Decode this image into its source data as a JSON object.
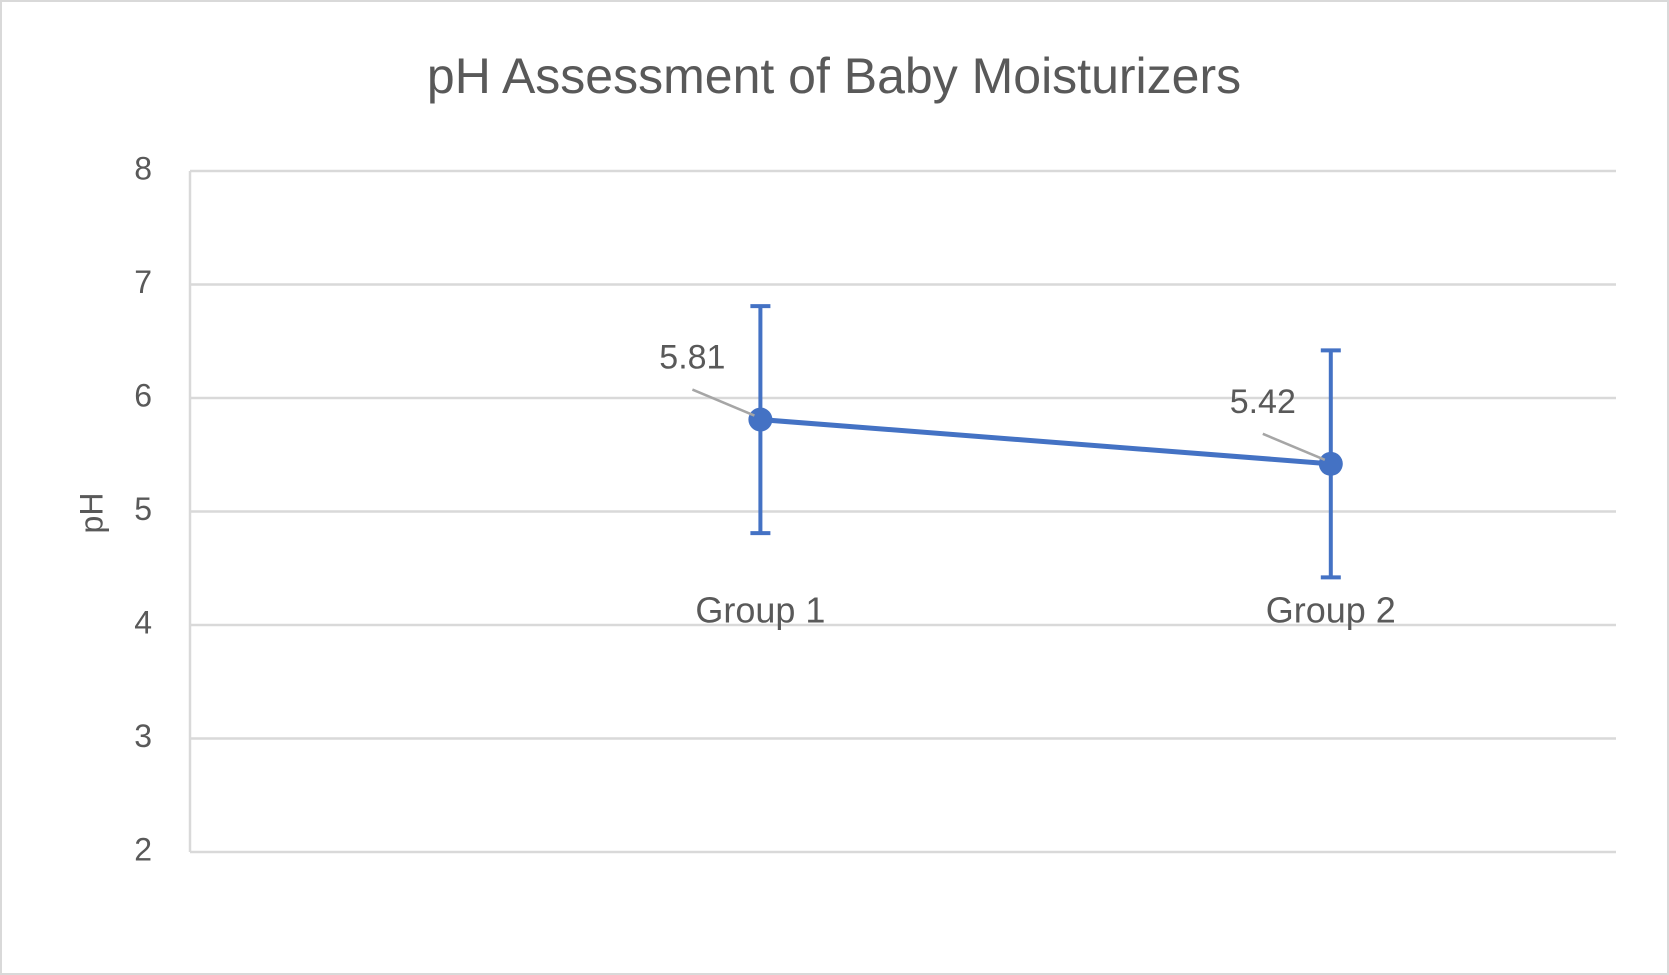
{
  "chart_data": {
    "type": "line",
    "title": "pH Assessment of Baby Moisturizers",
    "y_label": "pH",
    "categories": [
      "Group 1",
      "Group 2"
    ],
    "values": [
      5.81,
      5.42
    ],
    "errors": [
      1,
      1
    ],
    "color": "#4472c4",
    "ylim": [
      2,
      8
    ],
    "yticks": [
      2,
      3,
      4,
      5,
      6,
      7,
      8
    ],
    "grid": true
  }
}
